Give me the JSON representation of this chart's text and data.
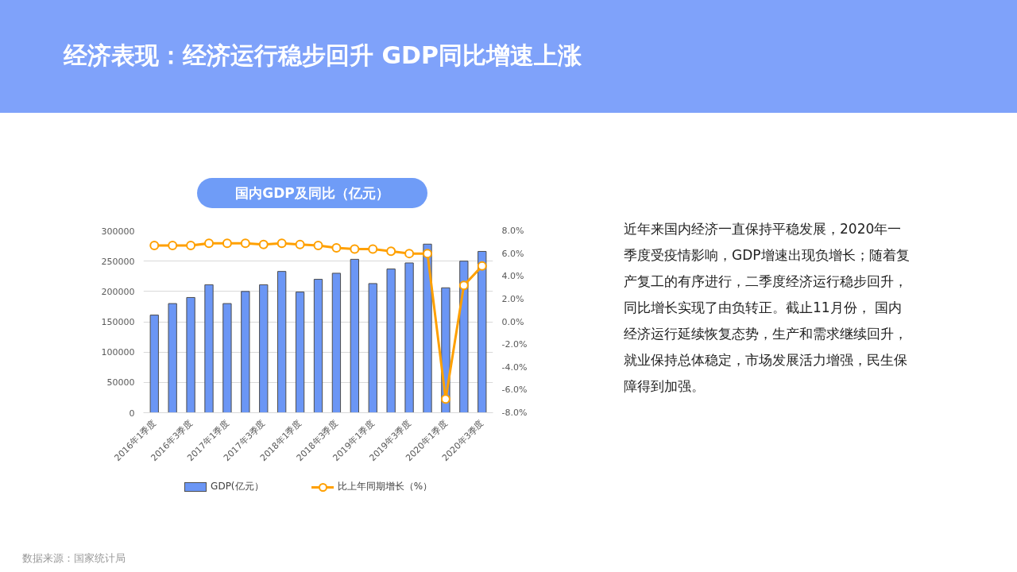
{
  "chart_data": {
    "type": "bar",
    "title": "经济表现：经济运行稳步回升 GDP同比增速上涨",
    "subtitle": "国内GDP及同比（亿元）",
    "categories": [
      "2016年1季度",
      null,
      "2016年3季度",
      null,
      "2017年1季度",
      null,
      "2017年3季度",
      null,
      "2018年1季度",
      null,
      "2018年3季度",
      null,
      "2019年1季度",
      null,
      "2019年3季度",
      null,
      "2020年1季度",
      null,
      "2020年3季度"
    ],
    "series": [
      {
        "name": "GDP(亿元）",
        "color": "#6b96f5",
        "values": [
          161000,
          180000,
          190000,
          211000,
          180000,
          200000,
          211000,
          233000,
          199000,
          220000,
          230000,
          253000,
          213000,
          237000,
          247000,
          278000,
          206000,
          250000,
          266000
        ]
      },
      {
        "name": "比上年同期增长（%）",
        "type": "line",
        "axis": "y2",
        "color": "#ffa000",
        "values": [
          6.7,
          6.7,
          6.7,
          6.9,
          6.9,
          6.9,
          6.8,
          6.9,
          6.8,
          6.7,
          6.5,
          6.4,
          6.4,
          6.2,
          6.0,
          6.0,
          -6.8,
          3.2,
          4.9
        ]
      }
    ],
    "ylim": [
      0,
      300000
    ],
    "yticks": [
      0,
      50000,
      100000,
      150000,
      200000,
      250000,
      300000
    ],
    "y2lim": [
      -8,
      8
    ],
    "y2ticks": [
      {
        "value": -8,
        "label": "-8.0%"
      },
      {
        "value": -6,
        "label": "-6.0%"
      },
      {
        "value": -4,
        "label": "-4.0%"
      },
      {
        "value": -2,
        "label": "-2.0%"
      },
      {
        "value": 0,
        "label": "0.0%"
      },
      {
        "value": 2,
        "label": "2.0%"
      },
      {
        "value": 4,
        "label": "4.0%"
      },
      {
        "value": 6,
        "label": "6.0%"
      },
      {
        "value": 8,
        "label": "8.0%"
      }
    ],
    "grid": "y",
    "legend": "bottom",
    "marker": "circle",
    "annotations": [
      "近年来国内经济一直保持平稳发展，2020年一季度受疫情影响，GDP增速出现负增长；随着复产复工的有序进行，二季度经济运行稳步回升，同比增长实现了由负转正。截止11月份， 国内经济运行延续恢复态势，生产和需求继续回升，就业保持总体稳定，市场发展活力增强，民生保障得到加强。",
      "数据来源：国家统计局"
    ]
  }
}
